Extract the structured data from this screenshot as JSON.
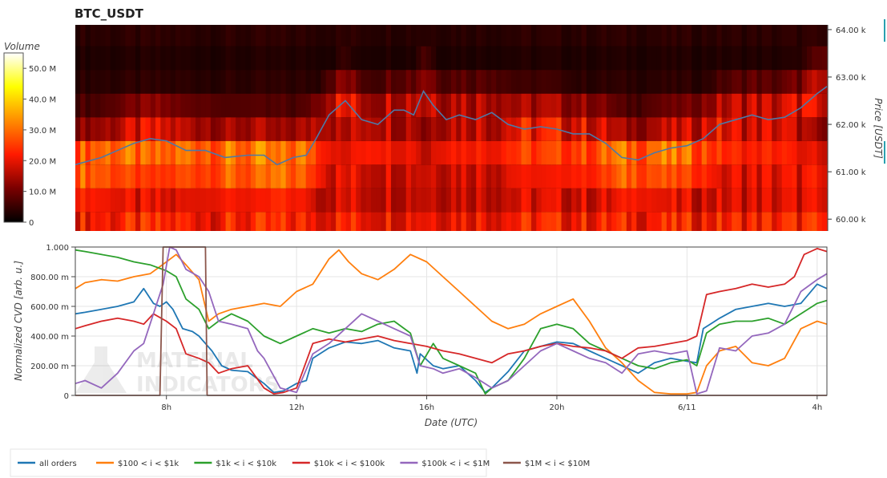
{
  "chart_data": [
    {
      "type": "heatmap",
      "title": "BTC_USDT",
      "colorbar": {
        "label": "Volume",
        "ticks": [
          "50.0 M",
          "40.0 M",
          "30.0 M",
          "20.0 M",
          "10.0 M",
          "0"
        ],
        "tick_values": [
          50,
          40,
          30,
          20,
          10,
          0
        ],
        "range": [
          0,
          55
        ]
      },
      "ylabel": "Price [USDT]",
      "ytick_labels": [
        "64.00 k",
        "63.00 k",
        "62.00 k",
        "61.00 k",
        "60.00 k"
      ],
      "ytick_values": [
        64000,
        63000,
        62000,
        61000,
        60000
      ],
      "ylim": [
        59750,
        64100
      ],
      "price_bins": [
        59900,
        60400,
        60900,
        61400,
        61900,
        62400,
        62900,
        63400,
        63900
      ],
      "price_bin_size": 500,
      "time_range_hours": [
        5.2,
        28.3
      ],
      "volume_profile_millions": {
        "59900": 23,
        "60400": 19,
        "60900": 20,
        "61400": 18,
        "61900": 8,
        "62400": 7,
        "62900": 4,
        "63400": 3,
        "63900": 4
      },
      "price_series": {
        "name": "price",
        "color": "#4e79a7",
        "hours": [
          5.2,
          6.0,
          7.0,
          7.5,
          8.0,
          8.6,
          9.2,
          9.8,
          10.5,
          11.0,
          11.4,
          11.9,
          12.3,
          12.6,
          13.0,
          13.5,
          14.0,
          14.5,
          15.0,
          15.3,
          15.6,
          15.9,
          16.2,
          16.6,
          17.0,
          17.5,
          18.0,
          18.5,
          19.0,
          19.5,
          20.0,
          20.5,
          21.0,
          21.5,
          22.0,
          22.5,
          23.0,
          23.5,
          24.0,
          24.5,
          25.0,
          25.5,
          26.0,
          26.5,
          27.0,
          27.5,
          28.0,
          28.3
        ],
        "values": [
          61150,
          61300,
          61600,
          61700,
          61650,
          61450,
          61450,
          61300,
          61350,
          61350,
          61150,
          61300,
          61350,
          61700,
          62200,
          62500,
          62100,
          62000,
          62300,
          62300,
          62200,
          62700,
          62400,
          62100,
          62200,
          62100,
          62250,
          62000,
          61900,
          61950,
          61900,
          61800,
          61800,
          61600,
          61300,
          61250,
          61400,
          61500,
          61550,
          61700,
          62000,
          62100,
          62200,
          62100,
          62150,
          62350,
          62650,
          62800
        ]
      }
    },
    {
      "type": "line",
      "xlabel": "Date (UTC)",
      "ylabel": "Normalized CVD [arb. u.]",
      "ytick_labels": [
        "1.000",
        "800.00 m",
        "600.00 m",
        "400.00 m",
        "200.00 m",
        "0"
      ],
      "ytick_values": [
        1.0,
        0.8,
        0.6,
        0.4,
        0.2,
        0
      ],
      "ylim": [
        0,
        1.0
      ],
      "xlim_hours": [
        5.2,
        28.3
      ],
      "xtick_labels": [
        "8h",
        "12h",
        "16h",
        "20h",
        "6/11",
        "4h"
      ],
      "xtick_values_hours": [
        8,
        12,
        16,
        20,
        24,
        28
      ],
      "grid": true,
      "legend_position": "bottom-left",
      "series": [
        {
          "name": "all orders",
          "color": "#1f77b4",
          "hours": [
            5.2,
            5.5,
            6.0,
            6.5,
            7.0,
            7.3,
            7.6,
            7.8,
            8.0,
            8.2,
            8.5,
            8.8,
            9.0,
            9.2,
            9.4,
            9.7,
            10.0,
            10.5,
            11.0,
            11.3,
            11.6,
            12.0,
            12.3,
            12.5,
            13.0,
            13.5,
            14.0,
            14.5,
            15.0,
            15.5,
            15.7,
            15.8,
            16.2,
            16.5,
            17.0,
            17.5,
            17.8,
            18.0,
            18.5,
            19.0,
            19.5,
            20.0,
            20.5,
            21.0,
            21.5,
            22.0,
            22.5,
            23.0,
            23.5,
            24.0,
            24.3,
            24.5,
            25.0,
            25.5,
            26.0,
            26.5,
            27.0,
            27.5,
            28.0,
            28.3
          ],
          "values": [
            0.55,
            0.56,
            0.58,
            0.6,
            0.63,
            0.72,
            0.62,
            0.6,
            0.63,
            0.58,
            0.45,
            0.43,
            0.4,
            0.35,
            0.3,
            0.2,
            0.17,
            0.16,
            0.08,
            0.02,
            0.03,
            0.08,
            0.1,
            0.25,
            0.32,
            0.36,
            0.35,
            0.37,
            0.32,
            0.3,
            0.15,
            0.28,
            0.2,
            0.18,
            0.2,
            0.1,
            0.02,
            0.05,
            0.16,
            0.3,
            0.33,
            0.36,
            0.35,
            0.3,
            0.25,
            0.2,
            0.15,
            0.22,
            0.25,
            0.23,
            0.22,
            0.45,
            0.52,
            0.58,
            0.6,
            0.62,
            0.6,
            0.62,
            0.75,
            0.72
          ]
        },
        {
          "name": "$100 < i < $1k",
          "color": "#ff7f0e",
          "hours": [
            5.2,
            5.5,
            6.0,
            6.5,
            7.0,
            7.5,
            8.0,
            8.3,
            8.6,
            9.0,
            9.3,
            9.6,
            10.0,
            10.5,
            11.0,
            11.5,
            12.0,
            12.5,
            13.0,
            13.3,
            13.6,
            14.0,
            14.5,
            15.0,
            15.5,
            16.0,
            16.5,
            17.0,
            17.5,
            18.0,
            18.5,
            19.0,
            19.5,
            20.0,
            20.5,
            21.0,
            21.5,
            22.0,
            22.5,
            23.0,
            23.5,
            24.0,
            24.3,
            24.6,
            25.0,
            25.5,
            26.0,
            26.5,
            27.0,
            27.5,
            28.0,
            28.3
          ],
          "values": [
            0.72,
            0.76,
            0.78,
            0.77,
            0.8,
            0.82,
            0.9,
            0.95,
            0.88,
            0.78,
            0.5,
            0.55,
            0.58,
            0.6,
            0.62,
            0.6,
            0.7,
            0.75,
            0.92,
            0.98,
            0.9,
            0.82,
            0.78,
            0.85,
            0.95,
            0.9,
            0.8,
            0.7,
            0.6,
            0.5,
            0.45,
            0.48,
            0.55,
            0.6,
            0.65,
            0.5,
            0.32,
            0.22,
            0.1,
            0.02,
            0.01,
            0.01,
            0.02,
            0.2,
            0.3,
            0.33,
            0.22,
            0.2,
            0.25,
            0.45,
            0.5,
            0.48
          ]
        },
        {
          "name": "$1k < i < $10k",
          "color": "#2ca02c",
          "hours": [
            5.2,
            5.5,
            6.0,
            6.5,
            7.0,
            7.5,
            8.0,
            8.3,
            8.6,
            9.0,
            9.3,
            9.6,
            10.0,
            10.5,
            11.0,
            11.5,
            12.0,
            12.5,
            13.0,
            13.5,
            14.0,
            14.5,
            15.0,
            15.5,
            15.8,
            16.2,
            16.5,
            17.0,
            17.5,
            17.8,
            18.0,
            18.5,
            19.0,
            19.5,
            20.0,
            20.5,
            21.0,
            21.5,
            22.0,
            22.5,
            23.0,
            23.5,
            24.0,
            24.3,
            24.6,
            25.0,
            25.5,
            26.0,
            26.5,
            27.0,
            27.5,
            28.0,
            28.3
          ],
          "values": [
            0.98,
            0.97,
            0.95,
            0.93,
            0.9,
            0.88,
            0.84,
            0.8,
            0.65,
            0.58,
            0.45,
            0.5,
            0.55,
            0.5,
            0.4,
            0.35,
            0.4,
            0.45,
            0.42,
            0.45,
            0.43,
            0.48,
            0.5,
            0.42,
            0.2,
            0.35,
            0.25,
            0.2,
            0.15,
            0.01,
            0.05,
            0.1,
            0.25,
            0.45,
            0.48,
            0.45,
            0.35,
            0.3,
            0.25,
            0.2,
            0.18,
            0.22,
            0.24,
            0.2,
            0.42,
            0.48,
            0.5,
            0.5,
            0.52,
            0.48,
            0.55,
            0.62,
            0.64
          ]
        },
        {
          "name": "$10k < i < $100k",
          "color": "#d62728",
          "hours": [
            5.2,
            5.5,
            6.0,
            6.5,
            7.0,
            7.3,
            7.6,
            8.0,
            8.3,
            8.6,
            9.0,
            9.3,
            9.6,
            10.0,
            10.5,
            11.0,
            11.3,
            11.6,
            12.0,
            12.5,
            13.0,
            13.5,
            14.0,
            14.5,
            15.0,
            15.5,
            16.0,
            16.5,
            17.0,
            17.5,
            18.0,
            18.5,
            19.0,
            19.5,
            20.0,
            20.5,
            21.0,
            21.5,
            22.0,
            22.5,
            23.0,
            23.5,
            24.0,
            24.3,
            24.6,
            25.0,
            25.5,
            26.0,
            26.5,
            27.0,
            27.3,
            27.6,
            28.0,
            28.3
          ],
          "values": [
            0.45,
            0.47,
            0.5,
            0.52,
            0.5,
            0.48,
            0.55,
            0.5,
            0.45,
            0.28,
            0.25,
            0.22,
            0.15,
            0.18,
            0.2,
            0.05,
            0.01,
            0.02,
            0.05,
            0.35,
            0.38,
            0.36,
            0.38,
            0.4,
            0.37,
            0.35,
            0.33,
            0.3,
            0.28,
            0.25,
            0.22,
            0.28,
            0.3,
            0.33,
            0.35,
            0.33,
            0.32,
            0.3,
            0.25,
            0.32,
            0.33,
            0.35,
            0.37,
            0.4,
            0.68,
            0.7,
            0.72,
            0.75,
            0.73,
            0.75,
            0.8,
            0.95,
            0.99,
            0.97
          ]
        },
        {
          "name": "$100k < i < $1M",
          "color": "#9467bd",
          "hours": [
            5.2,
            5.5,
            6.0,
            6.5,
            7.0,
            7.3,
            7.6,
            7.9,
            8.1,
            8.3,
            8.6,
            9.0,
            9.3,
            9.6,
            10.0,
            10.5,
            10.8,
            11.0,
            11.5,
            12.0,
            12.5,
            13.0,
            13.5,
            14.0,
            14.5,
            15.0,
            15.5,
            15.8,
            16.2,
            16.5,
            17.0,
            17.5,
            18.0,
            18.5,
            19.0,
            19.5,
            20.0,
            20.5,
            21.0,
            21.5,
            22.0,
            22.5,
            23.0,
            23.5,
            24.0,
            24.3,
            24.6,
            25.0,
            25.5,
            26.0,
            26.5,
            27.0,
            27.5,
            28.0,
            28.3
          ],
          "values": [
            0.08,
            0.1,
            0.05,
            0.15,
            0.3,
            0.35,
            0.55,
            0.75,
            1.0,
            0.98,
            0.85,
            0.8,
            0.7,
            0.5,
            0.48,
            0.45,
            0.3,
            0.25,
            0.05,
            0.02,
            0.28,
            0.35,
            0.45,
            0.55,
            0.5,
            0.45,
            0.4,
            0.2,
            0.18,
            0.15,
            0.18,
            0.12,
            0.05,
            0.1,
            0.2,
            0.3,
            0.35,
            0.3,
            0.25,
            0.22,
            0.15,
            0.28,
            0.3,
            0.28,
            0.3,
            0.01,
            0.03,
            0.32,
            0.3,
            0.4,
            0.42,
            0.48,
            0.7,
            0.78,
            0.82
          ]
        },
        {
          "name": "$1M < i < $10M",
          "color": "#8c564b",
          "hours": [
            5.2,
            7.0,
            7.8,
            7.9,
            9.2,
            9.25,
            9.4,
            28.3
          ],
          "values": [
            0.0,
            0.0,
            0.0,
            1.0,
            1.0,
            0.0,
            0.0,
            0.0
          ]
        }
      ]
    }
  ],
  "watermark": "MATERIAL INDICATORS"
}
